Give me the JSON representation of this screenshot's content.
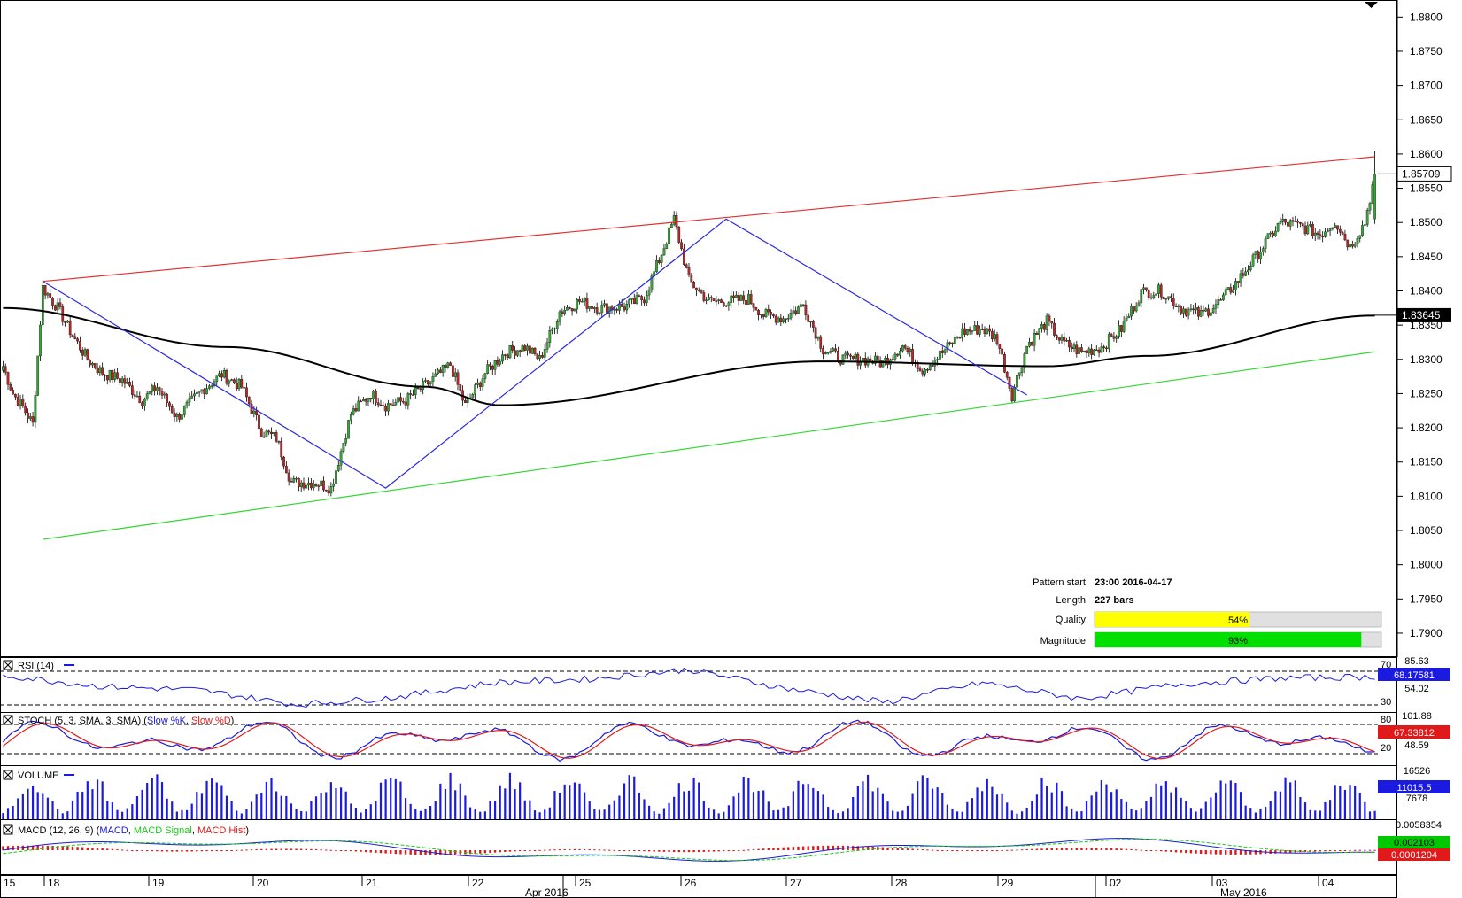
{
  "colors": {
    "background": "#ffffff",
    "frame": "#000000",
    "grid": "#000000",
    "candle_up": "#38a438",
    "candle_down": "#b02a2a",
    "candle_wick": "#000000",
    "resistance_line": "#e03030",
    "support_line": "#30d630",
    "pattern_line": "#2a2ae0",
    "moving_average": "#000000",
    "rsi_line": "#1a1ae0",
    "stoch_k": "#1a1ae0",
    "stoch_d": "#e01a1a",
    "volume_bar": "#1a1ae0",
    "macd_line": "#1a1ae0",
    "macd_signal": "#1ac81a",
    "macd_hist": "#e01a1a",
    "quality_bar": "#ffff00",
    "magnitude_bar": "#00e000",
    "bar_track": "#e0e0e0",
    "price_box_bg": "#ffffff",
    "ma_box_bg": "#000000",
    "rsi_box_bg": "#1a1ae0",
    "stoch_box_bg": "#e01a1a",
    "volume_box_bg": "#1a1ae0",
    "macd_box_bg": "#00c800",
    "macd_hist_box_bg": "#e01a1a"
  },
  "pattern_info": {
    "start_label": "Pattern start",
    "start_value": "23:00 2016-04-17",
    "length_label": "Length",
    "length_value": "227 bars",
    "quality_label": "Quality",
    "quality_value": "54%",
    "quality_fraction": 0.54,
    "magnitude_label": "Magnitude",
    "magnitude_value": "93%",
    "magnitude_fraction": 0.93
  },
  "price_boxes": {
    "last_price": "1.85709",
    "moving_average": "1.83645"
  },
  "indicators": {
    "rsi": {
      "label": "RSI (14)",
      "box_value": "68.17581",
      "scale_top": "85.63",
      "scale_mid": "54.02",
      "level_high": "70",
      "level_low": "30"
    },
    "stoch": {
      "label_prefix": "STOCH (5, 3, SMA, 3, SMA) (",
      "label_k": "Slow %K",
      "label_sep": ", ",
      "label_d": "Slow %D",
      "label_suffix": ")",
      "box_value": "67.33812",
      "scale_top": "101.88",
      "scale_mid": "48.59",
      "level_high": "80",
      "level_low": "20"
    },
    "volume": {
      "label": "VOLUME",
      "box_value": "11015.5",
      "scale_top": "16526",
      "scale_mid": "7678"
    },
    "macd": {
      "label_prefix": "MACD (12, 26, 9) (",
      "label_macd": "MACD",
      "label_sep1": ", ",
      "label_signal": "MACD Signal",
      "label_sep2": ", ",
      "label_hist": "MACD Hist",
      "label_suffix": ")",
      "box_macd": "0.002103",
      "box_hist": "0.0001204",
      "scale_top": "0.0058354"
    }
  },
  "x_axis": {
    "day_labels": [
      "15",
      "18",
      "19",
      "20",
      "21",
      "22",
      "25",
      "26",
      "27",
      "28",
      "29",
      "02",
      "03",
      "04"
    ],
    "month_labels": [
      "Apr 2016",
      "May 2016"
    ]
  },
  "chart_data": {
    "type": "candlestick",
    "instrument_timeframe": "hourly",
    "y_range": [
      1.7865,
      1.8825
    ],
    "y_ticks": [
      "1.8800",
      "1.8750",
      "1.8700",
      "1.8650",
      "1.8600",
      "1.8550",
      "1.8500",
      "1.8450",
      "1.8400",
      "1.8350",
      "1.8300",
      "1.8250",
      "1.8200",
      "1.8150",
      "1.8100",
      "1.8050",
      "1.8000",
      "1.7950",
      "1.7900"
    ],
    "pattern_type": "channel up",
    "resistance_line": {
      "start": [
        "2016-04-17 23:00",
        1.8414
      ],
      "end": [
        "2016-05-04 last bar",
        1.8596
      ]
    },
    "support_line": {
      "start": [
        "2016-04-17 23:00",
        1.8037
      ],
      "end": [
        "2016-05-04 last bar",
        1.8311
      ]
    },
    "pattern_zigzag_prices": [
      1.8414,
      1.8112,
      1.8505,
      1.8248
    ],
    "moving_average_key_values": [
      1.8375,
      1.8318,
      1.826,
      1.8233,
      1.8297,
      1.829,
      1.8305,
      1.8364
    ],
    "price_anchors": [
      [
        0,
        1.829
      ],
      [
        4,
        1.825
      ],
      [
        8,
        1.823
      ],
      [
        12,
        1.8205
      ],
      [
        16,
        1.8405
      ],
      [
        22,
        1.8375
      ],
      [
        28,
        1.8335
      ],
      [
        34,
        1.83
      ],
      [
        40,
        1.828
      ],
      [
        48,
        1.827
      ],
      [
        56,
        1.824
      ],
      [
        62,
        1.826
      ],
      [
        70,
        1.8215
      ],
      [
        80,
        1.8255
      ],
      [
        88,
        1.8278
      ],
      [
        96,
        1.826
      ],
      [
        104,
        1.8195
      ],
      [
        110,
        1.8185
      ],
      [
        116,
        1.812
      ],
      [
        126,
        1.812
      ],
      [
        132,
        1.8112
      ],
      [
        140,
        1.822
      ],
      [
        148,
        1.825
      ],
      [
        154,
        1.8233
      ],
      [
        162,
        1.824
      ],
      [
        172,
        1.8268
      ],
      [
        180,
        1.8292
      ],
      [
        186,
        1.8232
      ],
      [
        194,
        1.828
      ],
      [
        202,
        1.831
      ],
      [
        210,
        1.8318
      ],
      [
        216,
        1.83
      ],
      [
        224,
        1.837
      ],
      [
        232,
        1.8385
      ],
      [
        240,
        1.8375
      ],
      [
        250,
        1.8377
      ],
      [
        258,
        1.839
      ],
      [
        264,
        1.8445
      ],
      [
        270,
        1.8505
      ],
      [
        276,
        1.8415
      ],
      [
        284,
        1.8385
      ],
      [
        292,
        1.8385
      ],
      [
        300,
        1.8388
      ],
      [
        306,
        1.8365
      ],
      [
        314,
        1.836
      ],
      [
        322,
        1.838
      ],
      [
        330,
        1.8315
      ],
      [
        338,
        1.83
      ],
      [
        346,
        1.83
      ],
      [
        354,
        1.8295
      ],
      [
        362,
        1.832
      ],
      [
        370,
        1.8285
      ],
      [
        378,
        1.831
      ],
      [
        386,
        1.834
      ],
      [
        394,
        1.8345
      ],
      [
        400,
        1.833
      ],
      [
        406,
        1.8248
      ],
      [
        412,
        1.832
      ],
      [
        420,
        1.8355
      ],
      [
        426,
        1.8325
      ],
      [
        434,
        1.831
      ],
      [
        442,
        1.8318
      ],
      [
        450,
        1.8345
      ],
      [
        458,
        1.8398
      ],
      [
        466,
        1.84
      ],
      [
        474,
        1.8375
      ],
      [
        482,
        1.8365
      ],
      [
        490,
        1.8385
      ],
      [
        498,
        1.842
      ],
      [
        506,
        1.846
      ],
      [
        514,
        1.85
      ],
      [
        522,
        1.8495
      ],
      [
        530,
        1.8482
      ],
      [
        536,
        1.8502
      ],
      [
        542,
        1.8465
      ],
      [
        548,
        1.85
      ],
      [
        552,
        1.8571
      ]
    ],
    "rsi_key_values": [
      70,
      55,
      50,
      30,
      40,
      60,
      65,
      78,
      52,
      33,
      60,
      38,
      58,
      66,
      68
    ],
    "stoch_levels": [
      20,
      80
    ],
    "volume_range": [
      0,
      16526
    ],
    "macd_latest": {
      "macd": 0.002103,
      "hist": 0.0001204
    }
  }
}
